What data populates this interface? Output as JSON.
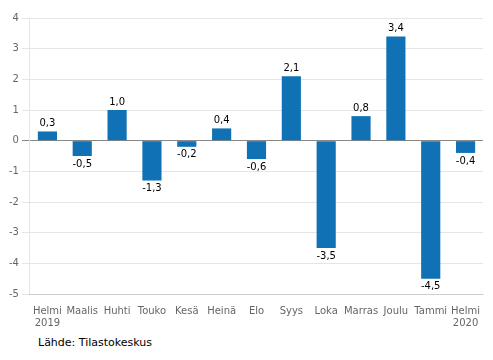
{
  "chart_data": {
    "type": "bar",
    "categories": [
      "Helmi\n2019",
      "Maalis",
      "Huhti",
      "Touko",
      "Kesä",
      "Heinä",
      "Elo",
      "Syys",
      "Loka",
      "Marras",
      "Joulu",
      "Tammi",
      "Helmi\n2020"
    ],
    "values": [
      0.3,
      -0.5,
      1.0,
      -1.3,
      -0.2,
      0.4,
      -0.6,
      2.1,
      -3.5,
      0.8,
      3.4,
      -4.5,
      -0.4
    ],
    "value_labels": [
      "0,3",
      "-0,5",
      "1,0",
      "-1,3",
      "-0,2",
      "0,4",
      "-0,6",
      "2,1",
      "-3,5",
      "0,8",
      "3,4",
      "-4,5",
      "-0,4"
    ],
    "data_labels": true,
    "color": "#1072b4",
    "ylim": [
      -5,
      4
    ],
    "yticks": [
      -5,
      -4,
      -3,
      -2,
      -1,
      0,
      1,
      2,
      3,
      4
    ],
    "grid": true,
    "source": "Lähde: Tilastokeskus"
  }
}
